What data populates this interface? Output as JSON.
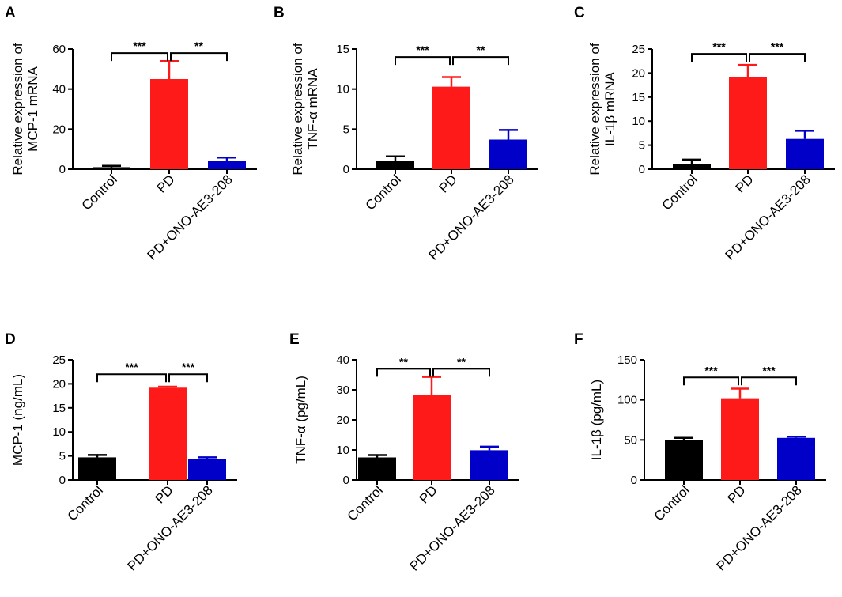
{
  "figure": {
    "categories": [
      "Control",
      "PD",
      "PD+ONO-AE3-208"
    ],
    "colors": [
      "#000000",
      "#ff1a1a",
      "#0000c8"
    ]
  },
  "chart_data": [
    {
      "type": "bar",
      "panel": "A",
      "ylabel_lines": [
        "Relative expression of",
        "MCP-1 mRNA"
      ],
      "categories": [
        "Control",
        "PD",
        "PD+ONO-AE3-208"
      ],
      "values": [
        1,
        45,
        4
      ],
      "errors": [
        0.7,
        9,
        1.8
      ],
      "ylim": [
        0,
        60
      ],
      "yticks": [
        0,
        20,
        40,
        60
      ],
      "significance": [
        {
          "from": 0,
          "to": 1,
          "label": "***"
        },
        {
          "from": 1,
          "to": 2,
          "label": "**"
        }
      ],
      "bracket_level": 58
    },
    {
      "type": "bar",
      "panel": "B",
      "ylabel_lines": [
        "Relative expression of",
        "TNF-α mRNA"
      ],
      "categories": [
        "Control",
        "PD",
        "PD+ONO-AE3-208"
      ],
      "values": [
        1,
        10.3,
        3.7
      ],
      "errors": [
        0.6,
        1.2,
        1.2
      ],
      "ylim": [
        0,
        15
      ],
      "yticks": [
        0,
        5,
        10,
        15
      ],
      "significance": [
        {
          "from": 0,
          "to": 1,
          "label": "***"
        },
        {
          "from": 1,
          "to": 2,
          "label": "**"
        }
      ],
      "bracket_level": 14
    },
    {
      "type": "bar",
      "panel": "C",
      "ylabel_lines": [
        "Relative expression of",
        "IL-1β mRNA"
      ],
      "categories": [
        "Control",
        "PD",
        "PD+ONO-AE3-208"
      ],
      "values": [
        1,
        19.2,
        6.3
      ],
      "errors": [
        1.0,
        2.5,
        1.7
      ],
      "ylim": [
        0,
        25
      ],
      "yticks": [
        0,
        5,
        10,
        15,
        20,
        25
      ],
      "significance": [
        {
          "from": 0,
          "to": 1,
          "label": "***"
        },
        {
          "from": 1,
          "to": 2,
          "label": "***"
        }
      ],
      "bracket_level": 24
    },
    {
      "type": "bar",
      "panel": "D",
      "ylabel_lines": [
        "MCP-1 (ng/mL)"
      ],
      "categories": [
        "Control",
        "PD",
        "PD+ONO-AE3-208"
      ],
      "values": [
        4.7,
        19.2,
        4.4
      ],
      "errors": [
        0.5,
        0.2,
        0.3
      ],
      "ylim": [
        0,
        25
      ],
      "yticks": [
        0,
        5,
        10,
        15,
        20,
        25
      ],
      "significance": [
        {
          "from": 0,
          "to": 1,
          "label": "***"
        },
        {
          "from": 1,
          "to": 2,
          "label": "***"
        }
      ],
      "bracket_level": 22
    },
    {
      "type": "bar",
      "panel": "E",
      "ylabel_lines": [
        "TNF-α (pg/mL)"
      ],
      "categories": [
        "Control",
        "PD",
        "PD+ONO-AE3-208"
      ],
      "values": [
        7.5,
        28.3,
        9.9
      ],
      "errors": [
        0.8,
        6,
        1.2
      ],
      "ylim": [
        0,
        40
      ],
      "yticks": [
        0,
        10,
        20,
        30,
        40
      ],
      "significance": [
        {
          "from": 0,
          "to": 1,
          "label": "**"
        },
        {
          "from": 1,
          "to": 2,
          "label": "**"
        }
      ],
      "bracket_level": 37
    },
    {
      "type": "bar",
      "panel": "F",
      "ylabel_lines": [
        "IL-1β (pg/mL)"
      ],
      "categories": [
        "Control",
        "PD",
        "PD+ONO-AE3-208"
      ],
      "values": [
        49.5,
        102,
        52.5
      ],
      "errors": [
        3,
        12,
        1.5
      ],
      "ylim": [
        0,
        150
      ],
      "yticks": [
        0,
        50,
        100,
        150
      ],
      "significance": [
        {
          "from": 0,
          "to": 1,
          "label": "***"
        },
        {
          "from": 1,
          "to": 2,
          "label": "***"
        }
      ],
      "bracket_level": 128
    }
  ]
}
